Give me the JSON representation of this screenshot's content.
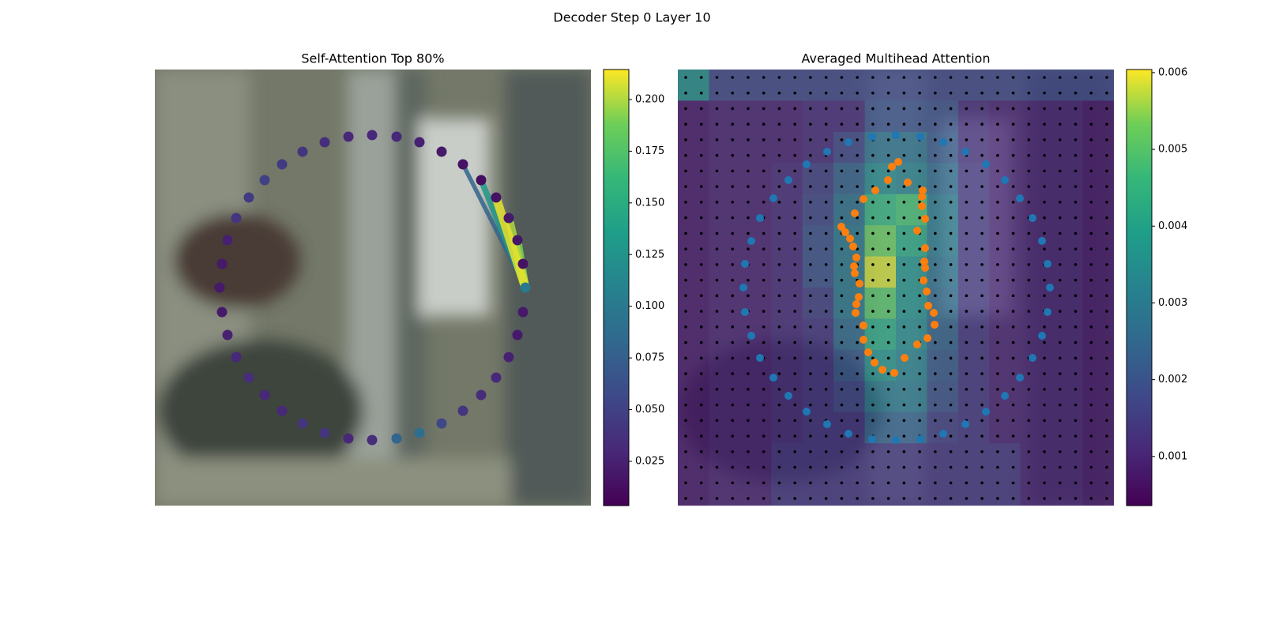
{
  "title": "Decoder Step 0 Layer 10",
  "chart_data": [
    {
      "type": "attention-scatter",
      "title": "Self-Attention Top 80%",
      "cmap": "viridis",
      "xlim": [
        0,
        552
      ],
      "ylim": [
        552,
        0
      ],
      "x": [
        275,
        306,
        335,
        363,
        390,
        413,
        432,
        448,
        459,
        466,
        469,
        466,
        459,
        448,
        432,
        413,
        390,
        363,
        335,
        306,
        275,
        245,
        215,
        187,
        161,
        139,
        119,
        103,
        92,
        85,
        82,
        85,
        92,
        103,
        119,
        139,
        161,
        187,
        215,
        245
      ],
      "y": [
        83,
        85,
        92,
        104,
        120,
        140,
        162,
        188,
        216,
        246,
        276,
        307,
        336,
        364,
        390,
        412,
        432,
        448,
        460,
        467,
        469,
        467,
        460,
        448,
        432,
        412,
        390,
        364,
        336,
        307,
        276,
        246,
        216,
        188,
        162,
        140,
        120,
        104,
        92,
        85
      ],
      "values": [
        0.03,
        0.03,
        0.025,
        0.02,
        0.015,
        0.012,
        0.015,
        0.02,
        0.018,
        0.015,
        0.1,
        0.02,
        0.02,
        0.025,
        0.03,
        0.035,
        0.04,
        0.055,
        0.09,
        0.08,
        0.035,
        0.03,
        0.04,
        0.04,
        0.03,
        0.03,
        0.035,
        0.03,
        0.025,
        0.02,
        0.02,
        0.02,
        0.025,
        0.04,
        0.045,
        0.05,
        0.045,
        0.04,
        0.035,
        0.03
      ],
      "links": {
        "from": 10,
        "to": [
          4,
          5,
          8,
          7,
          6
        ],
        "values": [
          0.08,
          0.13,
          0.19,
          0.2,
          0.21
        ]
      },
      "clim": [
        0.0036,
        0.2145
      ],
      "cticks": [
        0.025,
        {
          "value": 0.05,
          "label": "0.050"
        },
        0.075,
        {
          "value": 0.1,
          "label": "0.100"
        },
        0.125,
        {
          "value": 0.15,
          "label": "0.150"
        },
        0.175,
        {
          "value": 0.2,
          "label": "0.200"
        }
      ]
    },
    {
      "type": "heatmap-overlay",
      "title": "Averaged Multihead Attention",
      "cmap": "viridis",
      "xlim": [
        0,
        552
      ],
      "ylim": [
        552,
        0
      ],
      "values": [
        [
          0.0035,
          0.0018,
          0.0018,
          0.0018,
          0.0018,
          0.0018,
          0.0018,
          0.0018,
          0.0018,
          0.0018,
          0.0018,
          0.0018,
          0.0018,
          0.0018
        ],
        [
          0.0008,
          0.001,
          0.001,
          0.001,
          0.0012,
          0.0012,
          0.002,
          0.002,
          0.002,
          0.0012,
          0.001,
          0.001,
          0.001,
          0.0008
        ],
        [
          0.0008,
          0.001,
          0.001,
          0.001,
          0.0012,
          0.0018,
          0.0028,
          0.0028,
          0.0022,
          0.0012,
          0.001,
          0.001,
          0.001,
          0.0008
        ],
        [
          0.0008,
          0.001,
          0.001,
          0.0012,
          0.0016,
          0.0024,
          0.0034,
          0.0032,
          0.0026,
          0.0014,
          0.001,
          0.001,
          0.001,
          0.0008
        ],
        [
          0.0008,
          0.001,
          0.001,
          0.0012,
          0.0018,
          0.0028,
          0.0045,
          0.0048,
          0.003,
          0.0014,
          0.001,
          0.001,
          0.001,
          0.0008
        ],
        [
          0.0008,
          0.001,
          0.001,
          0.0012,
          0.002,
          0.003,
          0.0052,
          0.0042,
          0.003,
          0.0014,
          0.001,
          0.001,
          0.001,
          0.0008
        ],
        [
          0.0008,
          0.001,
          0.001,
          0.0012,
          0.002,
          0.003,
          0.0058,
          0.0036,
          0.0028,
          0.0014,
          0.001,
          0.001,
          0.001,
          0.0008
        ],
        [
          0.0008,
          0.001,
          0.001,
          0.0012,
          0.0016,
          0.003,
          0.005,
          0.0036,
          0.0026,
          0.0014,
          0.001,
          0.001,
          0.001,
          0.0008
        ],
        [
          0.0008,
          0.001,
          0.001,
          0.0012,
          0.0014,
          0.0026,
          0.0042,
          0.0034,
          0.0024,
          0.0014,
          0.001,
          0.001,
          0.001,
          0.0008
        ],
        [
          0.0008,
          0.001,
          0.001,
          0.0012,
          0.0014,
          0.0022,
          0.0036,
          0.0032,
          0.0022,
          0.0014,
          0.001,
          0.001,
          0.001,
          0.0008
        ],
        [
          0.0008,
          0.001,
          0.001,
          0.0012,
          0.0014,
          0.0018,
          0.003,
          0.003,
          0.002,
          0.0014,
          0.001,
          0.001,
          0.001,
          0.0008
        ],
        [
          0.0008,
          0.001,
          0.001,
          0.0012,
          0.0014,
          0.0014,
          0.0024,
          0.0024,
          0.0016,
          0.0014,
          0.001,
          0.001,
          0.001,
          0.0008
        ],
        [
          0.0008,
          0.001,
          0.001,
          0.0014,
          0.0014,
          0.0014,
          0.0014,
          0.0014,
          0.0014,
          0.0014,
          0.0014,
          0.001,
          0.001,
          0.0008
        ],
        [
          0.0008,
          0.001,
          0.001,
          0.0014,
          0.0014,
          0.0014,
          0.0014,
          0.0014,
          0.0014,
          0.0014,
          0.0014,
          0.001,
          0.001,
          0.0008
        ]
      ],
      "series": [
        {
          "color": "#1f77b4",
          "x": [
            276,
            307,
            336,
            364,
            390,
            414,
            433,
            449,
            461,
            468,
            471,
            468,
            461,
            449,
            433,
            414,
            390,
            364,
            336,
            307,
            276,
            246,
            216,
            189,
            163,
            140,
            121,
            104,
            93,
            85,
            83,
            85,
            93,
            104,
            121,
            140,
            163,
            189,
            216,
            246
          ],
          "y": [
            83,
            85,
            92,
            104,
            120,
            140,
            163,
            188,
            217,
            246,
            276,
            307,
            337,
            365,
            390,
            413,
            433,
            449,
            461,
            468,
            469,
            468,
            461,
            449,
            433,
            413,
            390,
            365,
            337,
            307,
            276,
            246,
            217,
            188,
            163,
            140,
            120,
            104,
            92,
            85
          ]
        },
        {
          "color": "#ff7f0e",
          "x": [
            279,
            271,
            266,
            291,
            310,
            309,
            250,
            235,
            309,
            224,
            313,
            207,
            212,
            218,
            303,
            222,
            313,
            226,
            312,
            223,
            313,
            224,
            311,
            230,
            315,
            229,
            226,
            317,
            225,
            324,
            235,
            325,
            235,
            316,
            303,
            241,
            287,
            249,
            259,
            274
          ],
          "y": [
            117,
            123,
            140,
            143,
            153,
            161,
            153,
            164,
            173,
            182,
            189,
            199,
            206,
            214,
            204,
            224,
            226,
            238,
            243,
            249,
            251,
            258,
            267,
            271,
            281,
            288,
            297,
            299,
            308,
            308,
            324,
            323,
            342,
            340,
            348,
            358,
            365,
            371,
            380,
            384
          ]
        }
      ],
      "clim": [
        0.00036,
        0.00604
      ],
      "cticks": [
        0.001,
        0.002,
        0.003,
        0.004,
        0.005,
        0.006
      ]
    }
  ]
}
